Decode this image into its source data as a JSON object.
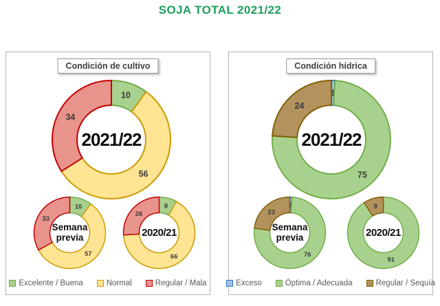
{
  "page_title": "SOJA TOTAL 2021/22",
  "colors": {
    "title_green": "#1E9E5C"
  },
  "panels": [
    {
      "header": "Condición de cultivo",
      "legend": [
        {
          "label": "Excelente / Buena",
          "fill": "#A9D18E",
          "stroke": "#70AD47"
        },
        {
          "label": "Normal",
          "fill": "#FFE593",
          "stroke": "#CC9900"
        },
        {
          "label": "Regular / Mala",
          "fill": "#E8938C",
          "stroke": "#C00000"
        }
      ]
    },
    {
      "header": "Condición hídrica",
      "legend": [
        {
          "label": "Exceso",
          "fill": "#9DC3E6",
          "stroke": "#2E75B6"
        },
        {
          "label": "Óptima / Adecuada",
          "fill": "#A9D18E",
          "stroke": "#70AD47"
        },
        {
          "label": "Regular / Sequía",
          "fill": "#B3925D",
          "stroke": "#7F6000"
        }
      ]
    }
  ],
  "chart_data": [
    {
      "type": "pie",
      "subtype": "donut",
      "panel": "Condición de cultivo",
      "title": "2021/22",
      "categories": [
        "Excelente / Buena",
        "Normal",
        "Regular / Mala"
      ],
      "values": [
        10,
        56,
        34
      ],
      "fills": [
        "#A9D18E",
        "#FFE593",
        "#E8938C"
      ],
      "strokes": [
        "#70AD47",
        "#CC9900",
        "#C00000"
      ],
      "start_angle_deg": 0,
      "direction": "clockwise"
    },
    {
      "type": "pie",
      "subtype": "donut",
      "panel": "Condición de cultivo",
      "title": "Semana previa",
      "categories": [
        "Excelente / Buena",
        "Normal",
        "Regular / Mala"
      ],
      "values": [
        10,
        57,
        33
      ],
      "fills": [
        "#A9D18E",
        "#FFE593",
        "#E8938C"
      ],
      "strokes": [
        "#70AD47",
        "#CC9900",
        "#C00000"
      ],
      "start_angle_deg": 0,
      "direction": "clockwise"
    },
    {
      "type": "pie",
      "subtype": "donut",
      "panel": "Condición de cultivo",
      "title": "2020/21",
      "categories": [
        "Excelente / Buena",
        "Normal",
        "Regular / Mala"
      ],
      "values": [
        8,
        66,
        26
      ],
      "fills": [
        "#A9D18E",
        "#FFE593",
        "#E8938C"
      ],
      "strokes": [
        "#70AD47",
        "#CC9900",
        "#C00000"
      ],
      "start_angle_deg": 0,
      "direction": "clockwise"
    },
    {
      "type": "pie",
      "subtype": "donut",
      "panel": "Condición hídrica",
      "title": "2021/22",
      "categories": [
        "Exceso",
        "Óptima / Adecuada",
        "Regular / Sequía"
      ],
      "values": [
        1,
        75,
        24
      ],
      "fills": [
        "#9DC3E6",
        "#A9D18E",
        "#B3925D"
      ],
      "strokes": [
        "#2E75B6",
        "#70AD47",
        "#7F6000"
      ],
      "start_angle_deg": 0,
      "direction": "clockwise"
    },
    {
      "type": "pie",
      "subtype": "donut",
      "panel": "Condición hídrica",
      "title": "Semana previa",
      "categories": [
        "Exceso",
        "Óptima / Adecuada",
        "Regular / Sequía"
      ],
      "values": [
        1,
        76,
        23
      ],
      "fills": [
        "#9DC3E6",
        "#A9D18E",
        "#B3925D"
      ],
      "strokes": [
        "#2E75B6",
        "#70AD47",
        "#7F6000"
      ],
      "start_angle_deg": 0,
      "direction": "clockwise"
    },
    {
      "type": "pie",
      "subtype": "donut",
      "panel": "Condición hídrica",
      "title": "2020/21",
      "categories": [
        "Exceso",
        "Óptima / Adecuada",
        "Regular / Sequía"
      ],
      "values": [
        0,
        91,
        9
      ],
      "fills": [
        "#9DC3E6",
        "#A9D18E",
        "#B3925D"
      ],
      "strokes": [
        "#2E75B6",
        "#70AD47",
        "#7F6000"
      ],
      "start_angle_deg": 0,
      "direction": "clockwise"
    }
  ]
}
